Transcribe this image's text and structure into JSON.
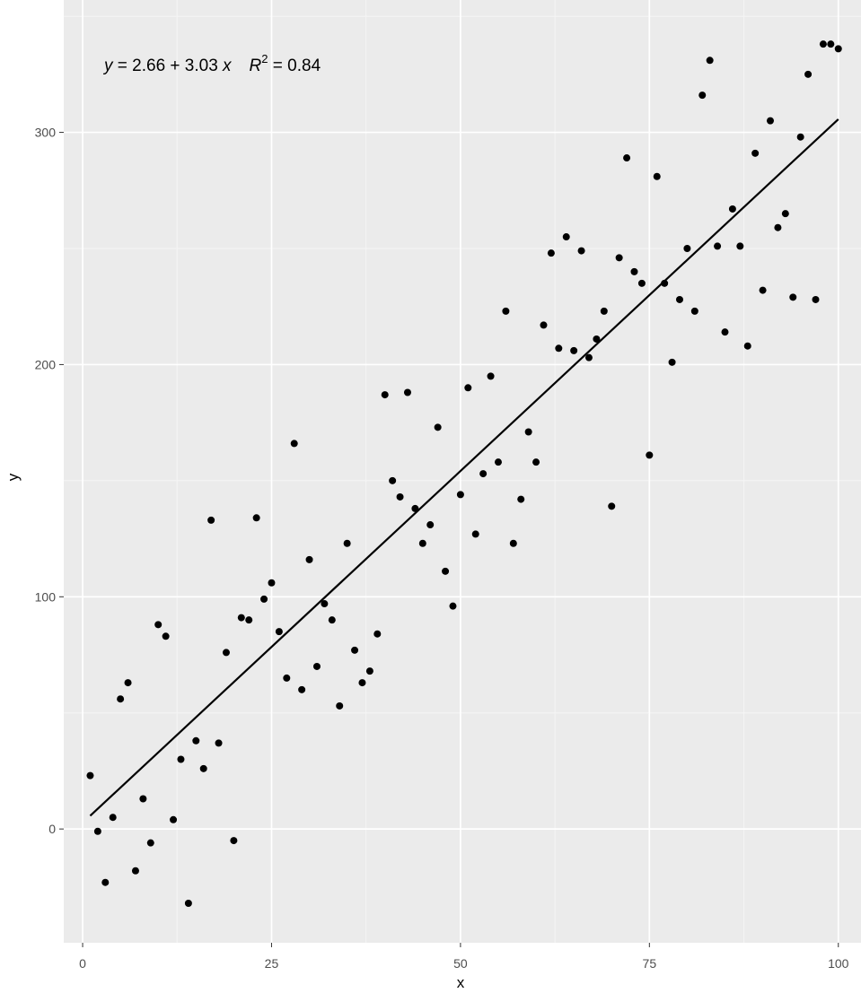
{
  "chart_data": {
    "type": "scatter",
    "title": "",
    "xlabel": "x",
    "ylabel": "y",
    "xlim": [
      -2.5,
      103
    ],
    "ylim": [
      -49,
      357
    ],
    "x_ticks": [
      0,
      25,
      50,
      75,
      100
    ],
    "y_ticks": [
      0,
      100,
      200,
      300
    ],
    "x_tick_labels": [
      "0",
      "25",
      "50",
      "75",
      "100"
    ],
    "y_tick_labels": [
      "0",
      "100",
      "200",
      "300"
    ],
    "grid": true,
    "legend": "none",
    "annotation": {
      "y_var": "y",
      "eq_part": " = 2.66 + 3.03 ",
      "x_var": "x",
      "r_var": "R",
      "r_sup": "2",
      "r_val": " = 0.84"
    },
    "regression_line": {
      "intercept": 2.66,
      "slope": 3.03,
      "x_range": [
        1,
        100
      ]
    },
    "points": [
      [
        1,
        23
      ],
      [
        2,
        -1
      ],
      [
        3,
        -23
      ],
      [
        4,
        5
      ],
      [
        5,
        56
      ],
      [
        6,
        63
      ],
      [
        7,
        -18
      ],
      [
        8,
        13
      ],
      [
        9,
        -6
      ],
      [
        10,
        88
      ],
      [
        11,
        83
      ],
      [
        12,
        4
      ],
      [
        13,
        30
      ],
      [
        14,
        -32
      ],
      [
        15,
        38
      ],
      [
        16,
        26
      ],
      [
        17,
        133
      ],
      [
        18,
        37
      ],
      [
        19,
        76
      ],
      [
        20,
        -5
      ],
      [
        21,
        91
      ],
      [
        22,
        90
      ],
      [
        23,
        134
      ],
      [
        24,
        99
      ],
      [
        25,
        106
      ],
      [
        26,
        85
      ],
      [
        27,
        65
      ],
      [
        28,
        166
      ],
      [
        29,
        60
      ],
      [
        30,
        116
      ],
      [
        31,
        70
      ],
      [
        32,
        97
      ],
      [
        33,
        90
      ],
      [
        34,
        53
      ],
      [
        35,
        123
      ],
      [
        36,
        77
      ],
      [
        37,
        63
      ],
      [
        38,
        68
      ],
      [
        39,
        84
      ],
      [
        40,
        187
      ],
      [
        41,
        150
      ],
      [
        42,
        143
      ],
      [
        43,
        188
      ],
      [
        44,
        138
      ],
      [
        45,
        123
      ],
      [
        46,
        131
      ],
      [
        47,
        173
      ],
      [
        48,
        111
      ],
      [
        49,
        96
      ],
      [
        50,
        144
      ],
      [
        51,
        190
      ],
      [
        52,
        127
      ],
      [
        53,
        153
      ],
      [
        54,
        195
      ],
      [
        55,
        158
      ],
      [
        56,
        223
      ],
      [
        57,
        123
      ],
      [
        58,
        142
      ],
      [
        59,
        171
      ],
      [
        60,
        158
      ],
      [
        61,
        217
      ],
      [
        62,
        248
      ],
      [
        63,
        207
      ],
      [
        64,
        255
      ],
      [
        65,
        206
      ],
      [
        66,
        249
      ],
      [
        67,
        203
      ],
      [
        68,
        211
      ],
      [
        69,
        223
      ],
      [
        70,
        139
      ],
      [
        71,
        246
      ],
      [
        72,
        289
      ],
      [
        73,
        240
      ],
      [
        74,
        235
      ],
      [
        75,
        161
      ],
      [
        76,
        281
      ],
      [
        77,
        235
      ],
      [
        78,
        201
      ],
      [
        79,
        228
      ],
      [
        80,
        250
      ],
      [
        81,
        223
      ],
      [
        82,
        316
      ],
      [
        83,
        331
      ],
      [
        84,
        251
      ],
      [
        85,
        214
      ],
      [
        86,
        267
      ],
      [
        87,
        251
      ],
      [
        88,
        208
      ],
      [
        89,
        291
      ],
      [
        90,
        232
      ],
      [
        91,
        305
      ],
      [
        92,
        259
      ],
      [
        93,
        265
      ],
      [
        94,
        229
      ],
      [
        95,
        298
      ],
      [
        96,
        325
      ],
      [
        97,
        228
      ],
      [
        98,
        338
      ],
      [
        99,
        338
      ],
      [
        100,
        336
      ]
    ]
  }
}
